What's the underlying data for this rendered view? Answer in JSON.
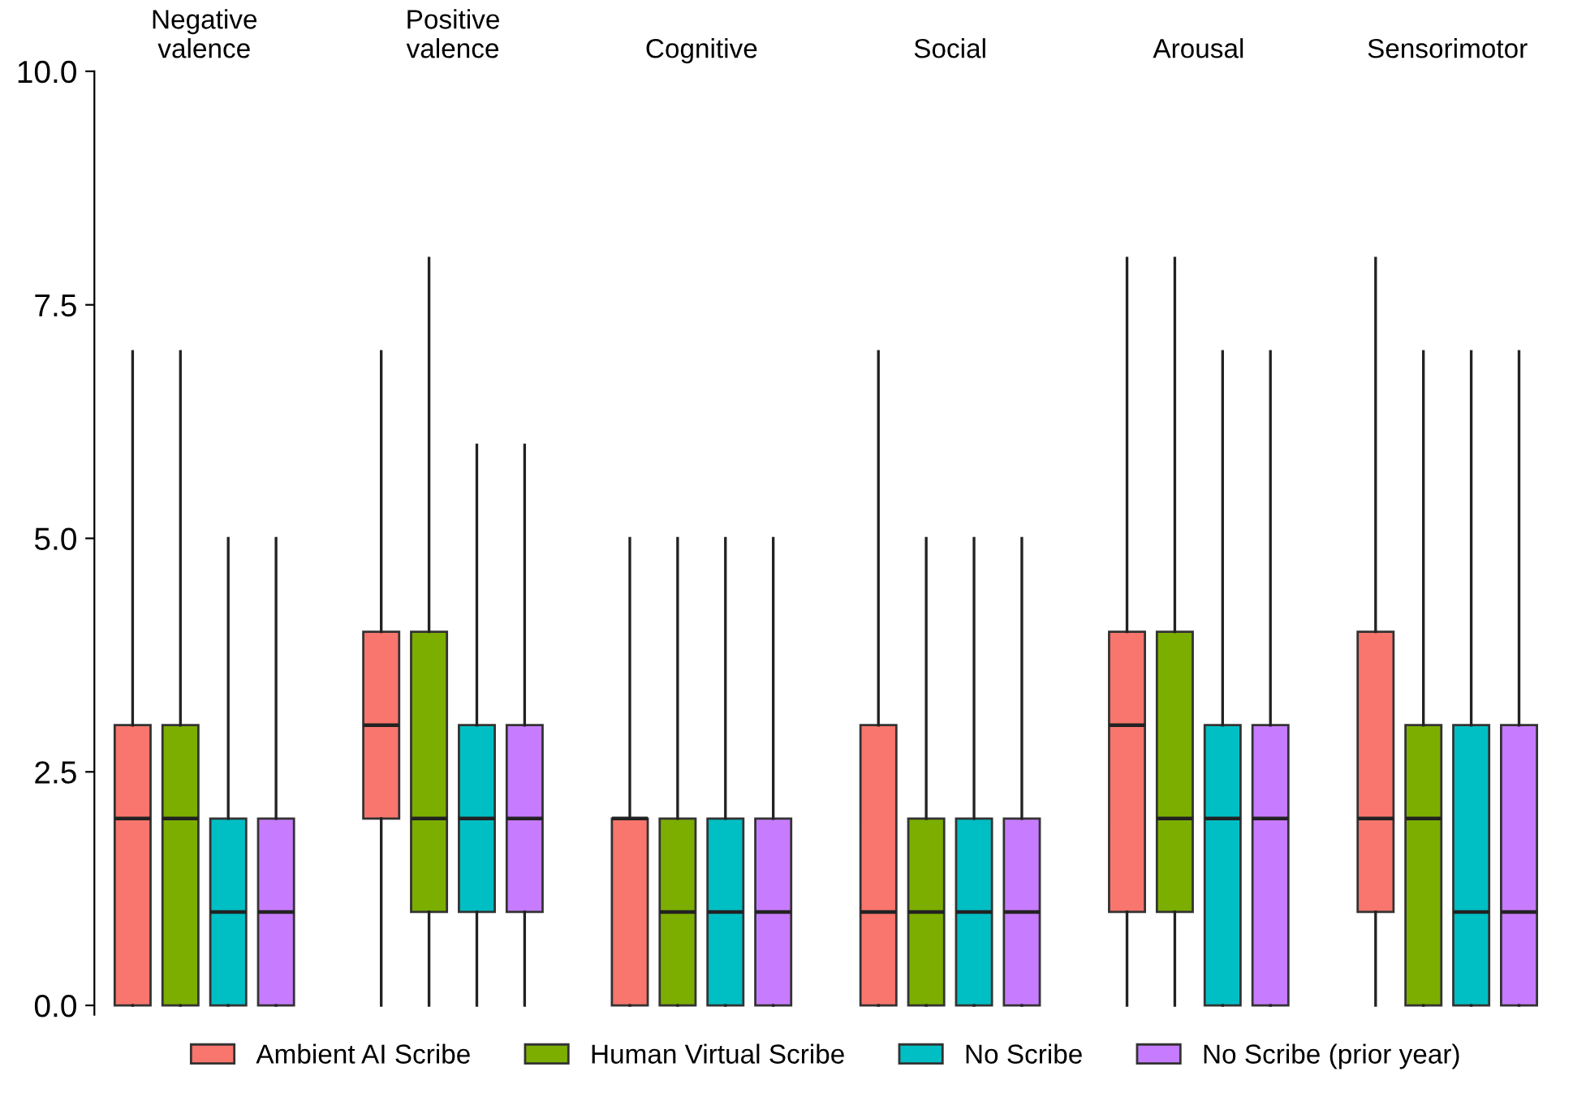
{
  "chart_data": {
    "type": "box",
    "categories": [
      "Negative\nvalence",
      "Positive\nvalence",
      "Cognitive",
      "Social",
      "Arousal",
      "Sensorimotor"
    ],
    "ylim": [
      -0.1,
      10.0
    ],
    "yticks": [
      {
        "value": 0,
        "label": "0.0"
      },
      {
        "value": 2.5,
        "label": "2.5"
      },
      {
        "value": 5,
        "label": "5.0"
      },
      {
        "value": 7.5,
        "label": "7.5"
      },
      {
        "value": 10,
        "label": "10.0"
      }
    ],
    "grid": false,
    "legend": "bottom",
    "series": [
      {
        "name": "Ambient AI Scribe",
        "color": "#f8766d",
        "boxes": [
          {
            "low": 0,
            "q1": 0,
            "median": 2,
            "q3": 3,
            "high": 7
          },
          {
            "low": 0,
            "q1": 2,
            "median": 3,
            "q3": 4,
            "high": 7
          },
          {
            "low": 0,
            "q1": 0,
            "median": 2,
            "q3": 2,
            "high": 5
          },
          {
            "low": 0,
            "q1": 0,
            "median": 1,
            "q3": 3,
            "high": 7
          },
          {
            "low": 0,
            "q1": 1,
            "median": 3,
            "q3": 4,
            "high": 8
          },
          {
            "low": 0,
            "q1": 1,
            "median": 2,
            "q3": 4,
            "high": 8
          }
        ]
      },
      {
        "name": "Human Virtual Scribe",
        "color": "#7cae00",
        "boxes": [
          {
            "low": 0,
            "q1": 0,
            "median": 2,
            "q3": 3,
            "high": 7
          },
          {
            "low": 0,
            "q1": 1,
            "median": 2,
            "q3": 4,
            "high": 8
          },
          {
            "low": 0,
            "q1": 0,
            "median": 1,
            "q3": 2,
            "high": 5
          },
          {
            "low": 0,
            "q1": 0,
            "median": 1,
            "q3": 2,
            "high": 5
          },
          {
            "low": 0,
            "q1": 1,
            "median": 2,
            "q3": 4,
            "high": 8
          },
          {
            "low": 0,
            "q1": 0,
            "median": 2,
            "q3": 3,
            "high": 7
          }
        ]
      },
      {
        "name": "No Scribe",
        "color": "#00bfc4",
        "boxes": [
          {
            "low": 0,
            "q1": 0,
            "median": 1,
            "q3": 2,
            "high": 5
          },
          {
            "low": 0,
            "q1": 1,
            "median": 2,
            "q3": 3,
            "high": 6
          },
          {
            "low": 0,
            "q1": 0,
            "median": 1,
            "q3": 2,
            "high": 5
          },
          {
            "low": 0,
            "q1": 0,
            "median": 1,
            "q3": 2,
            "high": 5
          },
          {
            "low": 0,
            "q1": 0,
            "median": 2,
            "q3": 3,
            "high": 7
          },
          {
            "low": 0,
            "q1": 0,
            "median": 1,
            "q3": 3,
            "high": 7
          }
        ]
      },
      {
        "name": "No Scribe (prior year)",
        "color": "#c77cff",
        "boxes": [
          {
            "low": 0,
            "q1": 0,
            "median": 1,
            "q3": 2,
            "high": 5
          },
          {
            "low": 0,
            "q1": 1,
            "median": 2,
            "q3": 3,
            "high": 6
          },
          {
            "low": 0,
            "q1": 0,
            "median": 1,
            "q3": 2,
            "high": 5
          },
          {
            "low": 0,
            "q1": 0,
            "median": 1,
            "q3": 2,
            "high": 5
          },
          {
            "low": 0,
            "q1": 0,
            "median": 2,
            "q3": 3,
            "high": 7
          },
          {
            "low": 0,
            "q1": 0,
            "median": 1,
            "q3": 3,
            "high": 7
          }
        ]
      }
    ]
  }
}
